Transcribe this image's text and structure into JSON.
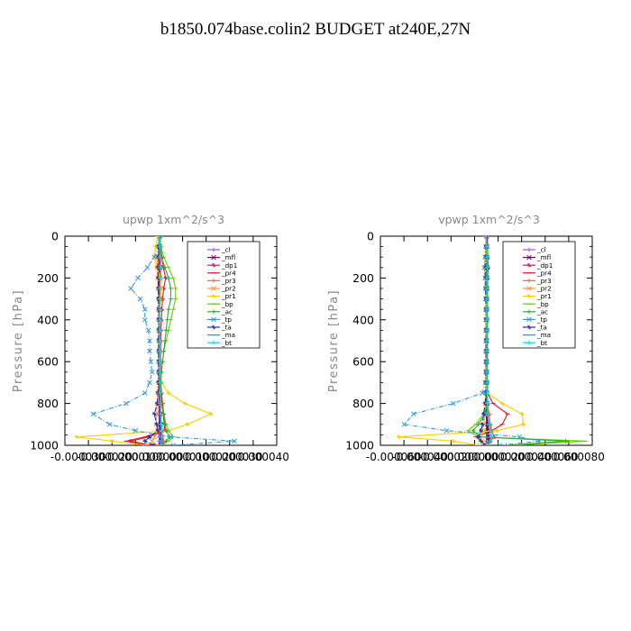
{
  "page": {
    "title": "b1850.074base.colin2  BUDGET at240E,27N"
  },
  "chart_data": [
    {
      "type": "line",
      "title": "upwp   1xm^2/s^3",
      "ylabel": "Pressure [hPa]",
      "xlabel": "",
      "ylim": [
        1000,
        0
      ],
      "xlim": [
        -4e-05,
        5e-05
      ],
      "yticks": [
        0,
        200,
        400,
        600,
        800,
        1000
      ],
      "xtick_labels": [
        "-0.000030",
        "-0.000020",
        "-0.000010",
        "0.000000",
        "0.000010",
        "0.000020",
        "0.000030",
        "0.000040"
      ],
      "y": [
        0,
        50,
        100,
        150,
        200,
        250,
        300,
        350,
        400,
        450,
        500,
        550,
        600,
        650,
        700,
        750,
        800,
        850,
        900,
        930,
        960,
        980,
        1000
      ],
      "series": [
        {
          "name": "_cl",
          "color": "#9955dd",
          "values": [
            0,
            0,
            0,
            0,
            0,
            0,
            0,
            0,
            0,
            0,
            0,
            0,
            0,
            0,
            0,
            0,
            0,
            0,
            0,
            0,
            0,
            0,
            0
          ]
        },
        {
          "name": "_mfl",
          "color": "#7a0080",
          "values": [
            2e-07,
            3e-07,
            2e-07,
            4e-07,
            3e-07,
            2e-07,
            2e-07,
            1e-07,
            1e-07,
            1e-07,
            1e-07,
            1e-07,
            1e-07,
            1e-07,
            2e-07,
            3e-07,
            3e-07,
            4e-07,
            6e-07,
            6e-07,
            1e-06,
            1e-06,
            8e-07
          ]
        },
        {
          "name": "_dp1",
          "color": "#cc2255",
          "values": [
            2e-07,
            6e-07,
            1.2e-06,
            1.8e-06,
            2.8e-06,
            2e-06,
            1.5e-06,
            1.2e-06,
            1e-06,
            8e-07,
            7e-07,
            6e-07,
            6e-07,
            7e-07,
            8e-07,
            1e-06,
            1.2e-06,
            1.8e-06,
            2.2e-06,
            3e-06,
            -4.5e-06,
            -1.2e-05,
            -3e-06
          ]
        },
        {
          "name": "_pr4",
          "color": "#ee1111",
          "values": [
            0,
            4e-07,
            8e-07,
            6e-07,
            4e-07,
            3e-07,
            2e-07,
            2e-07,
            2e-07,
            2e-07,
            2e-07,
            2e-07,
            2e-07,
            3e-07,
            4e-07,
            1e-06,
            1.5e-06,
            2e-06,
            2.5e-06,
            2e-06,
            -6e-06,
            -1.4e-05,
            -4e-06
          ]
        },
        {
          "name": "_pr3",
          "color": "#ff6644",
          "values": [
            0,
            3e-07,
            6e-07,
            9e-07,
            7e-07,
            5e-07,
            4e-07,
            3e-07,
            3e-07,
            3e-07,
            2e-07,
            2e-07,
            2e-07,
            3e-07,
            3e-07,
            4e-07,
            6e-07,
            8e-07,
            1e-06,
            1.2e-06,
            1.5e-06,
            2e-06,
            1e-06
          ]
        },
        {
          "name": "_pr2",
          "color": "#ff9933",
          "values": [
            0,
            -3e-07,
            -6e-07,
            -8e-07,
            -6e-07,
            -4e-07,
            -3e-07,
            -2e-07,
            -2e-07,
            -2e-07,
            -2e-07,
            -2e-07,
            -2e-07,
            -3e-07,
            -4e-07,
            -6e-07,
            -8e-07,
            -1e-06,
            -1.2e-06,
            -8e-07,
            -2e-06,
            -3e-06,
            -1e-06
          ]
        },
        {
          "name": "_pr1",
          "color": "#ffcc00",
          "values": [
            -5e-07,
            -1.5e-06,
            -2e-06,
            -1e-06,
            5e-07,
            8e-07,
            6e-07,
            4e-07,
            3e-07,
            3e-07,
            3e-07,
            3e-07,
            3e-07,
            4e-07,
            1e-06,
            4e-06,
            1.1e-05,
            2.2e-05,
            1.2e-05,
            4e-06,
            -3.5e-05,
            -2e-05,
            -5e-06
          ]
        },
        {
          "name": "_bp",
          "color": "#66cc00",
          "values": [
            3e-07,
            8e-07,
            2e-06,
            4e-06,
            6e-06,
            7e-06,
            7e-06,
            6e-06,
            5e-06,
            4e-06,
            3e-06,
            2e-06,
            1.5e-06,
            1e-06,
            8e-07,
            8e-07,
            1e-06,
            2e-06,
            3e-06,
            4e-06,
            6e-06,
            4e-06,
            1e-06
          ]
        },
        {
          "name": "_ac",
          "color": "#33aa33",
          "values": [
            0,
            5e-07,
            1e-06,
            2.5e-06,
            4e-06,
            5e-06,
            5e-06,
            4e-06,
            3.5e-06,
            3e-06,
            2.5e-06,
            2e-06,
            1.5e-06,
            1e-06,
            8e-07,
            8e-07,
            1e-06,
            2e-06,
            2.5e-06,
            3e-06,
            4.5e-06,
            3e-06,
            1e-06
          ]
        },
        {
          "name": "_tp",
          "color": "#3399dd",
          "values": [
            5e-07,
            0,
            -2e-06,
            -5e-06,
            -9e-06,
            -1.2e-05,
            -8e-06,
            -6e-06,
            -6e-06,
            -4.5e-06,
            -4e-06,
            -4e-06,
            -3.5e-06,
            -3e-06,
            -4e-06,
            -6e-06,
            -1.4e-05,
            -2.8e-05,
            -2.1e-05,
            -1e-05,
            5e-06,
            3.2e-05,
            6e-06
          ]
        },
        {
          "name": "_ta",
          "color": "#2233aa",
          "values": [
            0,
            -3e-07,
            -4e-07,
            -5e-07,
            -4e-07,
            -3e-07,
            -3e-07,
            -2e-07,
            -2e-07,
            -2e-07,
            -2e-07,
            -2e-07,
            -2e-07,
            -2e-07,
            -3e-07,
            -5e-07,
            -8e-07,
            -2e-06,
            -1e-06,
            -5e-07,
            -4e-06,
            -6e-06,
            -2e-06
          ]
        },
        {
          "name": "_ma",
          "color": "#4488cc",
          "values": [
            0,
            2e-07,
            3e-07,
            4e-07,
            4e-07,
            3e-07,
            3e-07,
            2e-07,
            2e-07,
            2e-07,
            2e-07,
            2e-07,
            2e-07,
            2e-07,
            2e-07,
            3e-07,
            4e-07,
            6e-07,
            8e-07,
            1e-06,
            1.2e-06,
            1e-06,
            5e-07
          ]
        },
        {
          "name": "_bt",
          "color": "#00dddd",
          "values": [
            0,
            2e-07,
            4e-07,
            6e-07,
            5e-07,
            4e-07,
            3e-07,
            3e-07,
            2e-07,
            2e-07,
            2e-07,
            2e-07,
            2e-07,
            2e-07,
            3e-07,
            4e-07,
            5e-07,
            6e-07,
            8e-07,
            1e-06,
            1.2e-06,
            1e-06,
            6e-07
          ]
        }
      ],
      "grid": false,
      "legend": "top-right"
    },
    {
      "type": "line",
      "title": "vpwp   1xm^2/s^3",
      "ylabel": "Pressure [hPa]",
      "xlabel": "",
      "ylim": [
        1000,
        0
      ],
      "xlim": [
        -8e-05,
        8e-05
      ],
      "yticks": [
        0,
        200,
        400,
        600,
        800,
        1000
      ],
      "xtick_labels": [
        "-0.000060",
        "-0.000040",
        "-0.000020",
        "0.000000",
        "0.000020",
        "0.000040",
        "0.000060",
        "0.000080"
      ],
      "y": [
        0,
        50,
        100,
        150,
        200,
        250,
        300,
        350,
        400,
        450,
        500,
        550,
        600,
        650,
        700,
        750,
        800,
        850,
        900,
        930,
        960,
        980,
        1000
      ],
      "series": [
        {
          "name": "_cl",
          "color": "#9955dd",
          "values": [
            0,
            0,
            0,
            0,
            0,
            0,
            0,
            0,
            0,
            0,
            0,
            0,
            0,
            0,
            0,
            0,
            0,
            0,
            0,
            0,
            0,
            0,
            0
          ]
        },
        {
          "name": "_mfl",
          "color": "#7a0080",
          "values": [
            3e-07,
            4e-07,
            4e-07,
            5e-07,
            4e-07,
            4e-07,
            3e-07,
            3e-07,
            3e-07,
            3e-07,
            3e-07,
            3e-07,
            3e-07,
            3e-07,
            3e-07,
            4e-07,
            5e-07,
            6e-07,
            8e-07,
            1e-06,
            1.5e-06,
            2e-06,
            1e-06
          ]
        },
        {
          "name": "_dp1",
          "color": "#cc2255",
          "values": [
            0,
            5e-07,
            1e-06,
            1.5e-06,
            1e-06,
            8e-07,
            6e-07,
            5e-07,
            4e-07,
            4e-07,
            4e-07,
            4e-07,
            4e-07,
            5e-07,
            6e-07,
            8e-07,
            1e-06,
            2e-06,
            3e-06,
            4e-06,
            6e-06,
            3e-06,
            1e-06
          ]
        },
        {
          "name": "_pr4",
          "color": "#ee1111",
          "values": [
            0,
            4e-07,
            8e-07,
            1e-06,
            8e-07,
            6e-07,
            5e-07,
            4e-07,
            4e-07,
            4e-07,
            4e-07,
            4e-07,
            4e-07,
            5e-07,
            6e-07,
            1e-06,
            5e-06,
            1.6e-05,
            1.2e-05,
            4e-06,
            -8e-06,
            -4e-06,
            -1e-06
          ]
        },
        {
          "name": "_pr3",
          "color": "#ff6644",
          "values": [
            0,
            3e-07,
            5e-07,
            8e-07,
            6e-07,
            5e-07,
            4e-07,
            3e-07,
            3e-07,
            3e-07,
            3e-07,
            3e-07,
            3e-07,
            4e-07,
            5e-07,
            8e-07,
            1e-06,
            2e-06,
            3e-06,
            4e-06,
            6e-06,
            3e-06,
            1e-06
          ]
        },
        {
          "name": "_pr2",
          "color": "#ff9933",
          "values": [
            0,
            -2e-07,
            -4e-07,
            -6e-07,
            -5e-07,
            -4e-07,
            -3e-07,
            -3e-07,
            -3e-07,
            -3e-07,
            -3e-07,
            -3e-07,
            -3e-07,
            -3e-07,
            -4e-07,
            -5e-07,
            -8e-07,
            -1e-06,
            -2e-06,
            -3e-06,
            -5e-06,
            -3e-06,
            -1e-06
          ]
        },
        {
          "name": "_pr1",
          "color": "#ffcc00",
          "values": [
            0,
            -5e-07,
            -1e-06,
            -1.5e-06,
            -1e-06,
            -8e-07,
            -6e-07,
            -5e-07,
            -4e-07,
            -4e-07,
            -4e-07,
            -4e-07,
            -4e-07,
            -5e-07,
            -1e-06,
            1e-06,
            1.2e-05,
            2.7e-05,
            2.8e-05,
            8e-06,
            -6.6e-05,
            -2.5e-05,
            -6e-06
          ]
        },
        {
          "name": "_bp",
          "color": "#66cc00",
          "values": [
            0,
            4e-07,
            8e-07,
            1e-06,
            8e-07,
            6e-07,
            5e-07,
            6e-07,
            1e-06,
            8e-07,
            5e-07,
            4e-07,
            4e-07,
            5e-07,
            6e-07,
            8e-07,
            1e-06,
            -2e-06,
            -8e-06,
            -1.4e-05,
            -6e-06,
            7.5e-05,
            2e-05
          ]
        },
        {
          "name": "_ac",
          "color": "#33aa33",
          "values": [
            0,
            3e-07,
            6e-07,
            8e-07,
            6e-07,
            5e-07,
            4e-07,
            5e-07,
            8e-07,
            6e-07,
            4e-07,
            3e-07,
            3e-07,
            4e-07,
            5e-07,
            6e-07,
            8e-07,
            -1e-06,
            -6e-06,
            -1e-05,
            -5e-06,
            6e-05,
            1.5e-05
          ]
        },
        {
          "name": "_tp",
          "color": "#3399dd",
          "values": [
            0,
            -5e-07,
            -1e-06,
            -1.5e-06,
            -1e-06,
            -8e-07,
            -6e-07,
            -5e-07,
            -4e-07,
            -4e-07,
            -4e-07,
            -4e-07,
            -4e-07,
            -5e-07,
            -1e-06,
            -3e-06,
            -2.5e-05,
            -5.5e-05,
            -6.2e-05,
            -3e-05,
            2.5e-05,
            4e-05,
            1e-05
          ]
        },
        {
          "name": "_ta",
          "color": "#2233aa",
          "values": [
            0,
            -2e-07,
            -3e-07,
            -4e-07,
            -3e-07,
            -3e-07,
            -2e-07,
            -2e-07,
            -2e-07,
            -2e-07,
            -2e-07,
            -2e-07,
            -2e-07,
            -2e-07,
            -3e-07,
            -4e-07,
            -1e-06,
            -2e-06,
            -3e-06,
            -4e-06,
            -6e-06,
            -4e-06,
            -1e-06
          ]
        },
        {
          "name": "_ma",
          "color": "#4488cc",
          "values": [
            0,
            2e-07,
            3e-07,
            4e-07,
            3e-07,
            3e-07,
            2e-07,
            2e-07,
            2e-07,
            2e-07,
            2e-07,
            2e-07,
            2e-07,
            2e-07,
            3e-07,
            4e-07,
            6e-07,
            1e-06,
            2e-06,
            3e-06,
            4e-06,
            2e-06,
            1e-06
          ]
        },
        {
          "name": "_bt",
          "color": "#00dddd",
          "values": [
            0,
            2e-07,
            4e-07,
            5e-07,
            4e-07,
            3e-07,
            3e-07,
            3e-07,
            3e-07,
            3e-07,
            3e-07,
            3e-07,
            3e-07,
            3e-07,
            4e-07,
            5e-07,
            8e-07,
            1e-06,
            2e-06,
            3e-06,
            4e-06,
            3e-06,
            1e-06
          ]
        }
      ],
      "grid": false,
      "legend": "top-right"
    }
  ]
}
